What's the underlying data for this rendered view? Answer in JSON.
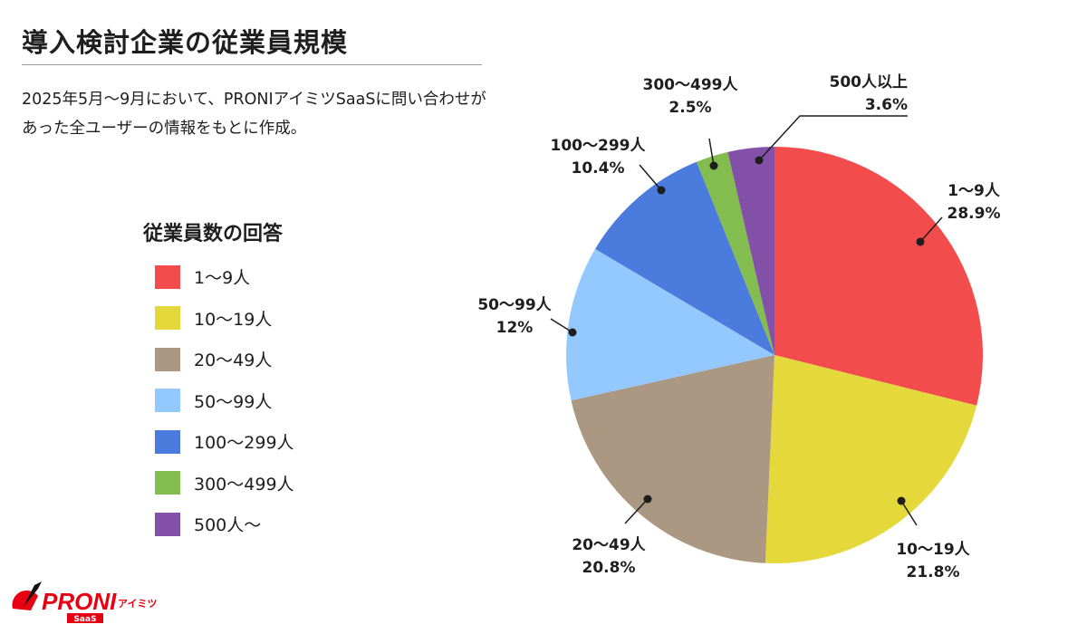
{
  "header": {
    "title": "導入検討企業の従業員規模",
    "description": "2025年5月～9月において、PRONIアイミツSaaSに問い合わせがあった全ユーザーの情報をもとに作成。"
  },
  "legend": {
    "title": "従業員数の回答",
    "items": [
      "1～9人",
      "10～19人",
      "20～49人",
      "50～99人",
      "100～299人",
      "300～499人",
      "500人～"
    ]
  },
  "chart_data": {
    "type": "pie",
    "start": "top",
    "direction": "clockwise",
    "slices": [
      {
        "label": "1～9人",
        "value": 28.9,
        "value_text": "28.9%",
        "color": "#F24C4C"
      },
      {
        "label": "10～19人",
        "value": 21.8,
        "value_text": "21.8%",
        "color": "#E5D83B"
      },
      {
        "label": "20～49人",
        "value": 20.8,
        "value_text": "20.8%",
        "color": "#AB9883"
      },
      {
        "label": "50～99人",
        "value": 12,
        "value_text": "12%",
        "color": "#93C9FF"
      },
      {
        "label": "100～299人",
        "value": 10.4,
        "value_text": "10.4%",
        "color": "#4A7BDD"
      },
      {
        "label": "300～499人",
        "value": 2.5,
        "value_text": "2.5%",
        "color": "#84BD4F"
      },
      {
        "label": "500人以上",
        "value": 3.6,
        "value_text": "3.6%",
        "color": "#8451A8"
      }
    ]
  },
  "logo": {
    "text": "PRONI",
    "sub": "アイミツ",
    "badge": "SaaS",
    "color": "#E60012"
  }
}
